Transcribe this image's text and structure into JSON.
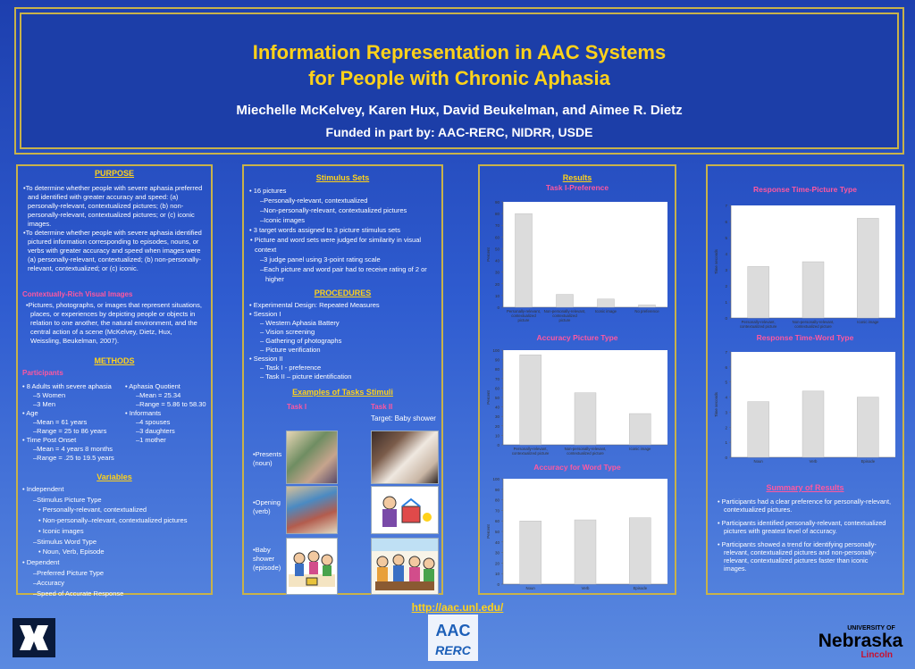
{
  "header": {
    "title_line1": "Information Representation in AAC Systems",
    "title_line2": "for People with Chronic Aphasia",
    "authors": "Miechelle McKelvey, Karen Hux, David Beukelman, and Aimee R. Dietz",
    "funded": "Funded in part by: AAC-RERC, NIDRR, USDE"
  },
  "purpose": {
    "heading": "PURPOSE",
    "items": [
      "To determine whether people with severe aphasia preferred and identified with greater accuracy and speed: (a) personally-relevant, contextualized pictures; (b) non-personally-relevant, contextualized pictures; or (c) iconic images.",
      "To determine whether people with severe aphasia identified pictured information corresponding to episodes, nouns, or verbs with greater accuracy and speed when images were (a) personally-relevant, contextualized; (b) non-personally-relevant, contextualized; or (c) iconic."
    ],
    "subheading": "Contextually-Rich Visual Images",
    "contextual_text": "Pictures, photographs, or images that represent situations, places, or experiences by depicting people or objects in relation to one another, the natural environment, and the central action of a scene (McKelvey, Dietz, Hux, Weissling, Beukelman, 2007)."
  },
  "methods": {
    "heading": "METHODS",
    "participants_label": "Participants",
    "left_list": [
      "8 Adults with severe aphasia",
      "–5 Women",
      "–3 Men",
      "Age",
      "–Mean = 61 years",
      "–Range = 25 to 86 years",
      "Time Post Onset",
      "–Mean = 4 years 8 months",
      "–Range = .25 to 19.5 years"
    ],
    "right_list": [
      "Aphasia Quotient",
      "–Mean = 25.34",
      "–Range = 5.86 to 58.30",
      "Informants",
      "–4 spouses",
      "–3 daughters",
      "–1 mother"
    ],
    "variables_heading": "Variables",
    "variables": [
      "Independent",
      "–Stimulus Picture Type",
      "Personally-relevant, contextualized",
      "Non-personally–relevant, contextualized pictures",
      "Iconic images",
      "–Stimulus Word Type",
      "Noun, Verb, Episode",
      "Dependent",
      "–Preferred Picture Type",
      "–Accuracy",
      "–Speed of Accurate Response"
    ]
  },
  "stimulus": {
    "heading": "Stimulus Sets",
    "items": [
      "16 pictures",
      "–Personally-relevant, contextualized",
      "–Non-personally-relevant, contextualized pictures",
      "–Iconic images",
      "3 target words assigned to 3 picture stimulus sets",
      "Picture and word sets were judged for similarity in visual context",
      "–3 judge panel using 3-point rating scale",
      "–Each picture and word pair had to receive rating of 2 or higher"
    ]
  },
  "procedures": {
    "heading": "PROCEDURES",
    "items": [
      "Experimental Design: Repeated Measures",
      "Session I",
      "– Western Aphasia Battery",
      "– Vision screening",
      "– Gathering of photographs",
      "– Picture verification",
      "Session II",
      "– Task I - preference",
      "– Task II – picture identification"
    ]
  },
  "examples": {
    "heading": "Examples of Tasks Stimuli",
    "task1": "Task I",
    "task2": "Task II",
    "target": "Target: Baby shower",
    "row_labels": [
      "•Presents (noun)",
      "•Opening (verb)",
      "•Baby shower (episode)"
    ]
  },
  "results": {
    "heading": "Results",
    "summary_heading": "Summary of Results",
    "summary": [
      "Participants had a clear preference for personally-relevant, contextualized pictures.",
      "Participants identified personally-relevant, contextualized pictures with greatest level of accuracy.",
      "Participants showed a trend for identifying personally-relevant, contextualized pictures and non-personally-relevant, contextualized pictures faster than iconic images."
    ]
  },
  "chart_data": [
    {
      "type": "bar",
      "title": "Task I-Preference",
      "ylabel": "Percent",
      "xlabel": "",
      "categories": [
        "Personally-relevant, contextualized picture",
        "Non-personally-relevant, contextualized picture",
        "Iconic image",
        "No preference"
      ],
      "values": [
        80,
        11,
        7,
        2
      ],
      "ylim": [
        0,
        90
      ],
      "yticks": [
        0,
        10,
        20,
        30,
        40,
        50,
        60,
        70,
        80,
        90
      ]
    },
    {
      "type": "bar",
      "title": "Response Time-Picture Type",
      "ylabel": "Time seconds",
      "xlabel": "",
      "categories": [
        "Personally-relevant, contextualized picture",
        "Non-personally-relevant, contextualized picture",
        "Iconic image"
      ],
      "values": [
        3.2,
        3.5,
        6.2
      ],
      "ylim": [
        0,
        7
      ],
      "yticks": [
        0,
        1,
        2,
        3,
        4,
        5,
        6,
        7
      ]
    },
    {
      "type": "bar",
      "title": "Accuracy Picture Type",
      "ylabel": "Percent",
      "xlabel": "",
      "categories": [
        "Personally-relevant, contextualized picture",
        "Non-personally-relevant, contextualized picture",
        "Iconic image"
      ],
      "values": [
        95,
        55,
        33
      ],
      "ylim": [
        0,
        100
      ],
      "yticks": [
        0,
        10,
        20,
        30,
        40,
        50,
        60,
        70,
        80,
        90,
        100
      ]
    },
    {
      "type": "bar",
      "title": "Response Time-Word Type",
      "ylabel": "Time seconds",
      "xlabel": "",
      "categories": [
        "Noun",
        "Verb",
        "Episode"
      ],
      "values": [
        3.7,
        4.4,
        4.0
      ],
      "ylim": [
        0,
        7
      ],
      "yticks": [
        0,
        1,
        2,
        3,
        4,
        5,
        6,
        7
      ]
    },
    {
      "type": "bar",
      "title": "Accuracy for Word Type",
      "ylabel": "Percent",
      "xlabel": "",
      "categories": [
        "Noun",
        "Verb",
        "Episode"
      ],
      "values": [
        60,
        61,
        63
      ],
      "ylim": [
        0,
        100
      ],
      "yticks": [
        0,
        10,
        20,
        30,
        40,
        50,
        60,
        70,
        80,
        90,
        100
      ]
    }
  ],
  "footer": {
    "url": "http://aac.unl.edu/",
    "aac_logo_text": "AAC",
    "rerc_logo_text": "RERC",
    "unl_small": "UNIVERSITY OF",
    "unl_name": "Nebraska",
    "unl_campus": "Lincoln"
  }
}
